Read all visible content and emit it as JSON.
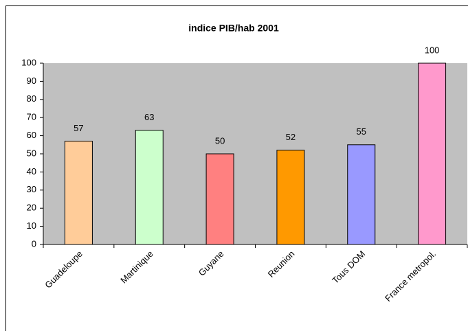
{
  "chart_data": {
    "type": "bar",
    "title": "indice PIB/hab 2001",
    "categories": [
      "Guadeloupe",
      "Martinique",
      "Guyane",
      "Reunion",
      "Tous DOM",
      "France metropol."
    ],
    "values": [
      57,
      63,
      50,
      52,
      55,
      100
    ],
    "colors": [
      "#ffcc99",
      "#ccffcc",
      "#ff8080",
      "#ff9900",
      "#9999ff",
      "#ff99cc"
    ],
    "ylim": [
      0,
      100
    ],
    "yticks": [
      0,
      10,
      20,
      30,
      40,
      50,
      60,
      70,
      80,
      90,
      100
    ],
    "grid": false
  }
}
